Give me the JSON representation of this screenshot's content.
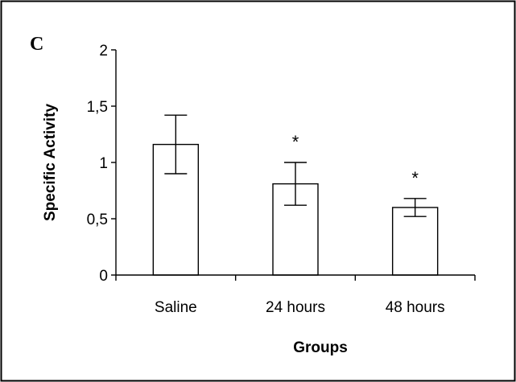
{
  "chart_data": {
    "type": "bar",
    "panel_label": "C",
    "title": "",
    "xlabel": "Groups",
    "ylabel": "Specific Activity",
    "categories": [
      "Saline",
      "24 hours",
      "48 hours"
    ],
    "values": [
      1.16,
      0.81,
      0.6
    ],
    "error": [
      0.26,
      0.19,
      0.08
    ],
    "significance": [
      "",
      "*",
      "*"
    ],
    "ylim": [
      0,
      2
    ],
    "yticks": [
      0,
      0.5,
      1,
      1.5,
      2
    ],
    "ytick_labels": [
      "0",
      "0,5",
      "1",
      "1,5",
      "2"
    ],
    "grid": false,
    "legend": "none",
    "colors": {
      "bar_fill": "#ffffff",
      "bar_stroke": "#000000",
      "frame": "#000000"
    }
  }
}
